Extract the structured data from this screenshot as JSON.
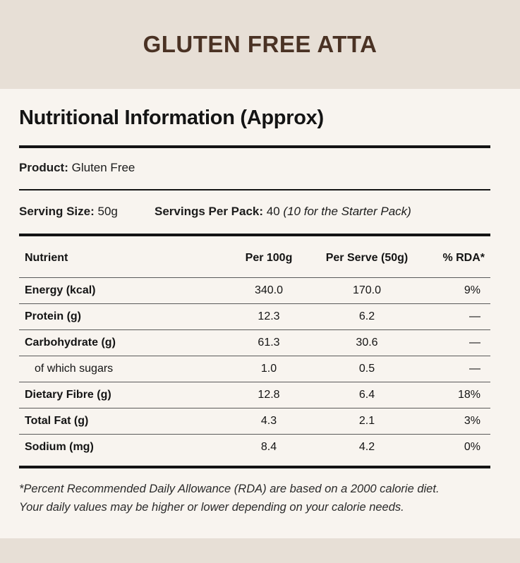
{
  "title": "GLUTEN FREE ATTA",
  "heading": "Nutritional Information (Approx)",
  "product": {
    "label": "Product:",
    "value": "Gluten Free"
  },
  "serving": {
    "size_label": "Serving Size:",
    "size_value": "50g",
    "per_pack_label": "Servings Per Pack:",
    "per_pack_value": "40",
    "per_pack_note": "(10 for the Starter Pack)"
  },
  "table": {
    "headers": [
      "Nutrient",
      "Per 100g",
      "Per Serve (50g)",
      "% RDA*"
    ],
    "rows": [
      {
        "nutrient": "Energy (kcal)",
        "per100": "340.0",
        "perServe": "170.0",
        "rda": "9%"
      },
      {
        "nutrient": "Protein (g)",
        "per100": "12.3",
        "perServe": "6.2",
        "rda": "—"
      },
      {
        "nutrient": "Carbohydrate (g)",
        "per100": "61.3",
        "perServe": "30.6",
        "rda": "—"
      },
      {
        "nutrient": "of which sugars",
        "per100": "1.0",
        "perServe": "0.5",
        "rda": "—"
      },
      {
        "nutrient": "Dietary Fibre (g)",
        "per100": "12.8",
        "perServe": "6.4",
        "rda": "18%"
      },
      {
        "nutrient": "Total Fat (g)",
        "per100": "4.3",
        "perServe": "2.1",
        "rda": "3%"
      },
      {
        "nutrient": "Sodium (mg)",
        "per100": "8.4",
        "perServe": "4.2",
        "rda": "0%"
      }
    ]
  },
  "footnote": {
    "line1": "*Percent Recommended Daily Allowance (RDA) are based on a 2000 calorie diet.",
    "line2": "Your daily values may be higher or lower depending on your calorie needs."
  }
}
